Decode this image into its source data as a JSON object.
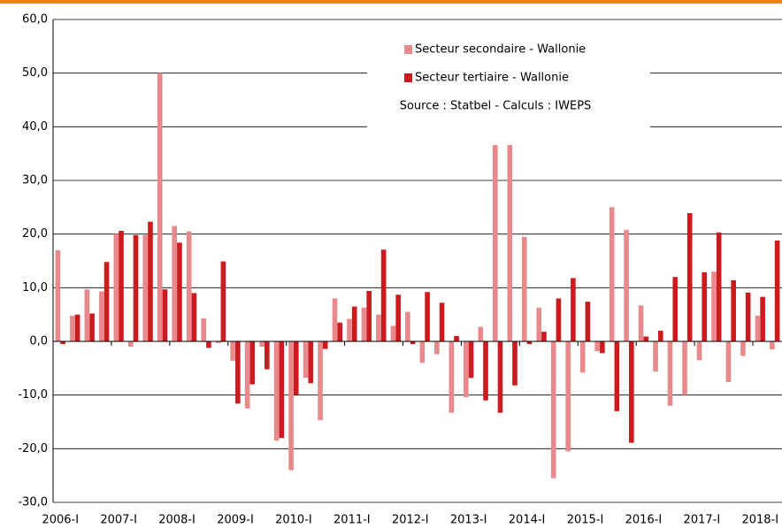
{
  "chart_data": {
    "type": "bar",
    "annotation": "Source : Statbel - Calculs : IWEPS",
    "categories": [
      "2006-I",
      null,
      null,
      null,
      "2007-I",
      null,
      null,
      null,
      "2008-I",
      null,
      null,
      null,
      "2009-I",
      null,
      null,
      null,
      "2010-I",
      null,
      null,
      null,
      "2011-I",
      null,
      null,
      null,
      "2012-I",
      null,
      null,
      null,
      "2013-I",
      null,
      null,
      null,
      "2014-I",
      null,
      null,
      null,
      "2015-I",
      null,
      null,
      null,
      "2016-I",
      null,
      null,
      null,
      "2017-I",
      null,
      null,
      null,
      "2018-I",
      null
    ],
    "series": [
      {
        "name": "Secteur secondaire - Wallonie",
        "color": "#e8898c",
        "values": [
          17,
          4.8,
          9.7,
          9.3,
          20,
          -1.0,
          19.8,
          50,
          21.5,
          20.5,
          4.3,
          -0.3,
          -3.6,
          -12.5,
          -1.0,
          -18.5,
          -24,
          -6.8,
          -14.7,
          8.0,
          4.2,
          6.3,
          5.0,
          2.9,
          5.5,
          -4.0,
          -2.4,
          -13.3,
          -10.4,
          2.7,
          38,
          38.3,
          19.5,
          6.3,
          -25.5,
          -20.5,
          -5.8,
          -1.8,
          25,
          20.8,
          6.7,
          -5.6,
          -12,
          -10,
          -3.5,
          13,
          -7.6,
          -2.7,
          4.8,
          -1.5
        ]
      },
      {
        "name": "Secteur tertiaire - Wallonie",
        "color": "#cc1a1e",
        "values": [
          -0.5,
          5.0,
          5.2,
          14.8,
          20.6,
          19.8,
          22.3,
          9.7,
          18.4,
          9.0,
          -1.2,
          14.9,
          -11.6,
          -8.0,
          -5.2,
          -18.0,
          -10,
          -7.8,
          -1.4,
          3.5,
          6.5,
          9.4,
          17.1,
          8.7,
          -0.5,
          9.2,
          7.2,
          1.0,
          -6.8,
          -11,
          -13.3,
          -8.2,
          -0.5,
          1.8,
          8.0,
          11.8,
          7.4,
          -2.2,
          -13,
          -18.9,
          0.9,
          2.0,
          12,
          23.9,
          12.9,
          20.3,
          11.4,
          9.1,
          8.3,
          18.8
        ]
      }
    ],
    "ylim": [
      -30,
      60
    ],
    "yticks": [
      {
        "value": -30,
        "label": "-30,0"
      },
      {
        "value": -20,
        "label": "-20,0"
      },
      {
        "value": -10,
        "label": "-10,0"
      },
      {
        "value": 0,
        "label": "0,0"
      },
      {
        "value": 10,
        "label": "10,0"
      },
      {
        "value": 20,
        "label": "20,0"
      },
      {
        "value": 30,
        "label": "30,0"
      },
      {
        "value": 40,
        "label": "40,0"
      },
      {
        "value": 50,
        "label": "50,0"
      },
      {
        "value": 60,
        "label": "60,0"
      }
    ],
    "grid": true
  }
}
